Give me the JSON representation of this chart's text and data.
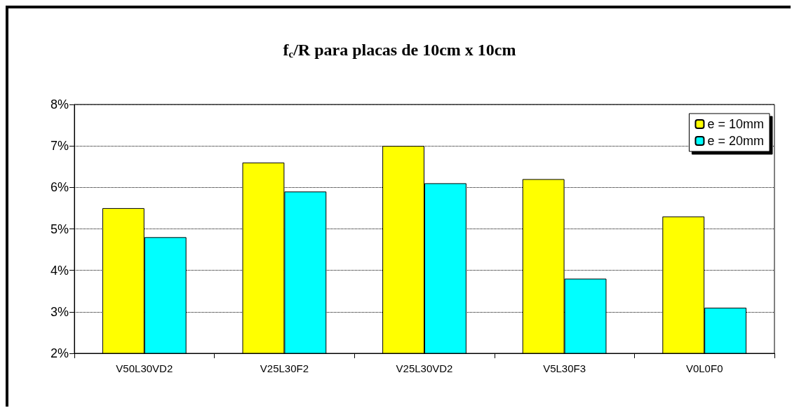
{
  "chart_data": {
    "type": "bar",
    "title": "f$_{c}$/R para placas de 10cm x 10cm",
    "categories": [
      "V50L30VD2",
      "V25L30F2",
      "V25L30VD2",
      "V5L30F3",
      "V0L0F0"
    ],
    "series": [
      {
        "name": "e = 10mm",
        "color": "#ffff00",
        "values": [
          5.5,
          6.6,
          7.0,
          6.2,
          5.3
        ]
      },
      {
        "name": "e = 20mm",
        "color": "#00ffff",
        "values": [
          4.8,
          5.9,
          6.1,
          3.8,
          3.1
        ]
      }
    ],
    "ylim": [
      2,
      8
    ],
    "yticks": [
      {
        "value": 2,
        "label": "2%"
      },
      {
        "value": 3,
        "label": "3%"
      },
      {
        "value": 4,
        "label": "4%"
      },
      {
        "value": 5,
        "label": "5%"
      },
      {
        "value": 6,
        "label": "6%"
      },
      {
        "value": 7,
        "label": "7%"
      },
      {
        "value": 8,
        "label": "8%"
      }
    ],
    "grid": "y",
    "legend": "top right"
  }
}
